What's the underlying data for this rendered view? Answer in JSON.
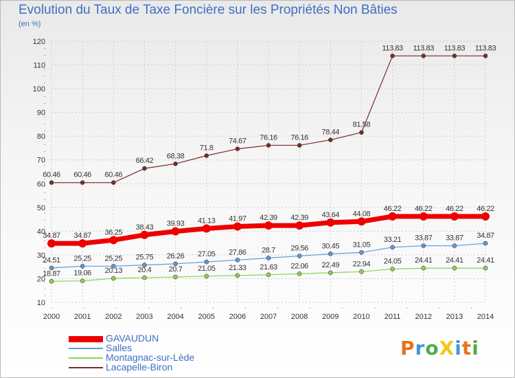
{
  "title": "Evolution du Taux de Taxe Foncière sur les Propriétés Non Bâties",
  "unit_label": "(en %)",
  "brand": {
    "text": "ProXiti",
    "colors": [
      "#e8731a",
      "#3a9ad9",
      "#4cae4c",
      "#f5c518",
      "#3a9ad9",
      "#e8731a",
      "#4cae4c"
    ]
  },
  "chart_data": {
    "type": "line",
    "title": "Evolution du Taux de Taxe Foncière sur les Propriétés Non Bâties",
    "ylabel": "(en %)",
    "xlabel": "",
    "ylim": [
      10,
      120
    ],
    "yticks": [
      10,
      20,
      30,
      40,
      50,
      60,
      70,
      80,
      90,
      100,
      110,
      120
    ],
    "x": [
      "2000",
      "2001",
      "2002",
      "2003",
      "2004",
      "2005",
      "2006",
      "2007",
      "2008",
      "2009",
      "2010",
      "2011",
      "2012",
      "2013",
      "2014"
    ],
    "grid": true,
    "legend_position": "bottom-left",
    "series": [
      {
        "name": "GAVAUDUN",
        "color": "#ee0000",
        "values": [
          34.87,
          34.87,
          36.25,
          38.43,
          39.93,
          41.13,
          41.97,
          42.39,
          42.39,
          43.64,
          44.08,
          46.22,
          46.22,
          46.22,
          46.22
        ],
        "labels": [
          "34.87",
          "34.87",
          "36.25",
          "38.43",
          "39.93",
          "41.13",
          "41.97",
          "42.39",
          "42.39",
          "43.64",
          "44.08",
          "46.22",
          "46.22",
          "46.22",
          "46.22"
        ]
      },
      {
        "name": "Salles",
        "color": "#5b9bd5",
        "values": [
          24.51,
          25.25,
          25.25,
          25.75,
          26.26,
          27.05,
          27.86,
          28.7,
          29.56,
          30.45,
          31.05,
          33.21,
          33.87,
          33.87,
          34.87
        ],
        "labels": [
          "24.51",
          "25.25",
          "25.25",
          "25.75",
          "26.26",
          "27.05",
          "27.86",
          "28.7",
          "29.56",
          "30.45",
          "31.05",
          "33.21",
          "33.87",
          "33.87",
          "34.87"
        ]
      },
      {
        "name": "Montagnac-sur-Lède",
        "color": "#92d050",
        "values": [
          18.87,
          19.06,
          20.13,
          20.4,
          20.7,
          21.05,
          21.33,
          21.63,
          22.06,
          22.49,
          22.94,
          24.05,
          24.41,
          24.41,
          24.41
        ],
        "labels": [
          "18.87",
          "19.06",
          "20.13",
          "20.4",
          "20.7",
          "21.05",
          "21.33",
          "21.63",
          "22.06",
          "22.49",
          "22.94",
          "24.05",
          "24.41",
          "24.41",
          "24.41"
        ]
      },
      {
        "name": "Lacapelle-Biron",
        "color": "#7b2a2a",
        "values": [
          60.46,
          60.46,
          60.46,
          66.42,
          68.38,
          71.8,
          74.67,
          76.16,
          76.16,
          78.44,
          81.58,
          113.83,
          113.83,
          113.83,
          113.83
        ],
        "labels": [
          "60.46",
          "60.46",
          "60.46",
          "66.42",
          "68.38",
          "71.8",
          "74.67",
          "76.16",
          "76.16",
          "78.44",
          "81.58",
          "113.83",
          "113.83",
          "113.83",
          "113.83"
        ]
      }
    ]
  }
}
